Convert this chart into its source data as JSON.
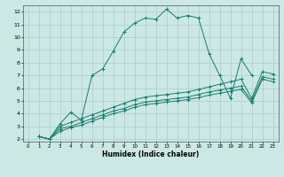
{
  "title": "",
  "xlabel": "Humidex (Indice chaleur)",
  "bg_color": "#cce8e4",
  "line_color": "#1a7a6e",
  "grid_color": "#aacccc",
  "xlim": [
    -0.5,
    23.5
  ],
  "ylim": [
    1.8,
    12.5
  ],
  "xticks": [
    0,
    1,
    2,
    3,
    4,
    5,
    6,
    7,
    8,
    9,
    10,
    11,
    12,
    13,
    14,
    15,
    16,
    17,
    18,
    19,
    20,
    21,
    22,
    23
  ],
  "yticks": [
    2,
    3,
    4,
    5,
    6,
    7,
    8,
    9,
    10,
    11,
    12
  ],
  "lines": [
    {
      "x": [
        1,
        2,
        3,
        4,
        5,
        6,
        7,
        8,
        9,
        10,
        11,
        12,
        13,
        14,
        15,
        16,
        17,
        18,
        19,
        20,
        21
      ],
      "y": [
        2.2,
        2.0,
        3.2,
        4.1,
        3.5,
        7.0,
        7.5,
        8.9,
        10.4,
        11.1,
        11.5,
        11.4,
        12.2,
        11.5,
        11.7,
        11.5,
        8.7,
        7.0,
        5.2,
        8.3,
        7.0
      ]
    },
    {
      "x": [
        1,
        2,
        3,
        4,
        5,
        6,
        7,
        8,
        9,
        10,
        11,
        12,
        13,
        14,
        15,
        16,
        17,
        18,
        19,
        20,
        21,
        22,
        23
      ],
      "y": [
        2.2,
        2.0,
        3.0,
        3.3,
        3.6,
        3.9,
        4.2,
        4.5,
        4.8,
        5.1,
        5.3,
        5.4,
        5.5,
        5.6,
        5.7,
        5.9,
        6.1,
        6.3,
        6.5,
        6.7,
        5.2,
        7.3,
        7.1
      ]
    },
    {
      "x": [
        1,
        2,
        3,
        4,
        5,
        6,
        7,
        8,
        9,
        10,
        11,
        12,
        13,
        14,
        15,
        16,
        17,
        18,
        19,
        20,
        21,
        22,
        23
      ],
      "y": [
        2.2,
        2.0,
        2.8,
        3.0,
        3.3,
        3.6,
        3.9,
        4.2,
        4.4,
        4.7,
        4.9,
        5.0,
        5.1,
        5.2,
        5.3,
        5.5,
        5.7,
        5.85,
        6.0,
        6.15,
        5.0,
        6.9,
        6.7
      ]
    },
    {
      "x": [
        1,
        2,
        3,
        4,
        5,
        6,
        7,
        8,
        9,
        10,
        11,
        12,
        13,
        14,
        15,
        16,
        17,
        18,
        19,
        20,
        21,
        22,
        23
      ],
      "y": [
        2.2,
        2.0,
        2.6,
        2.9,
        3.1,
        3.4,
        3.7,
        4.0,
        4.2,
        4.5,
        4.7,
        4.8,
        4.9,
        5.0,
        5.1,
        5.25,
        5.45,
        5.6,
        5.75,
        5.9,
        4.85,
        6.7,
        6.5
      ]
    }
  ]
}
